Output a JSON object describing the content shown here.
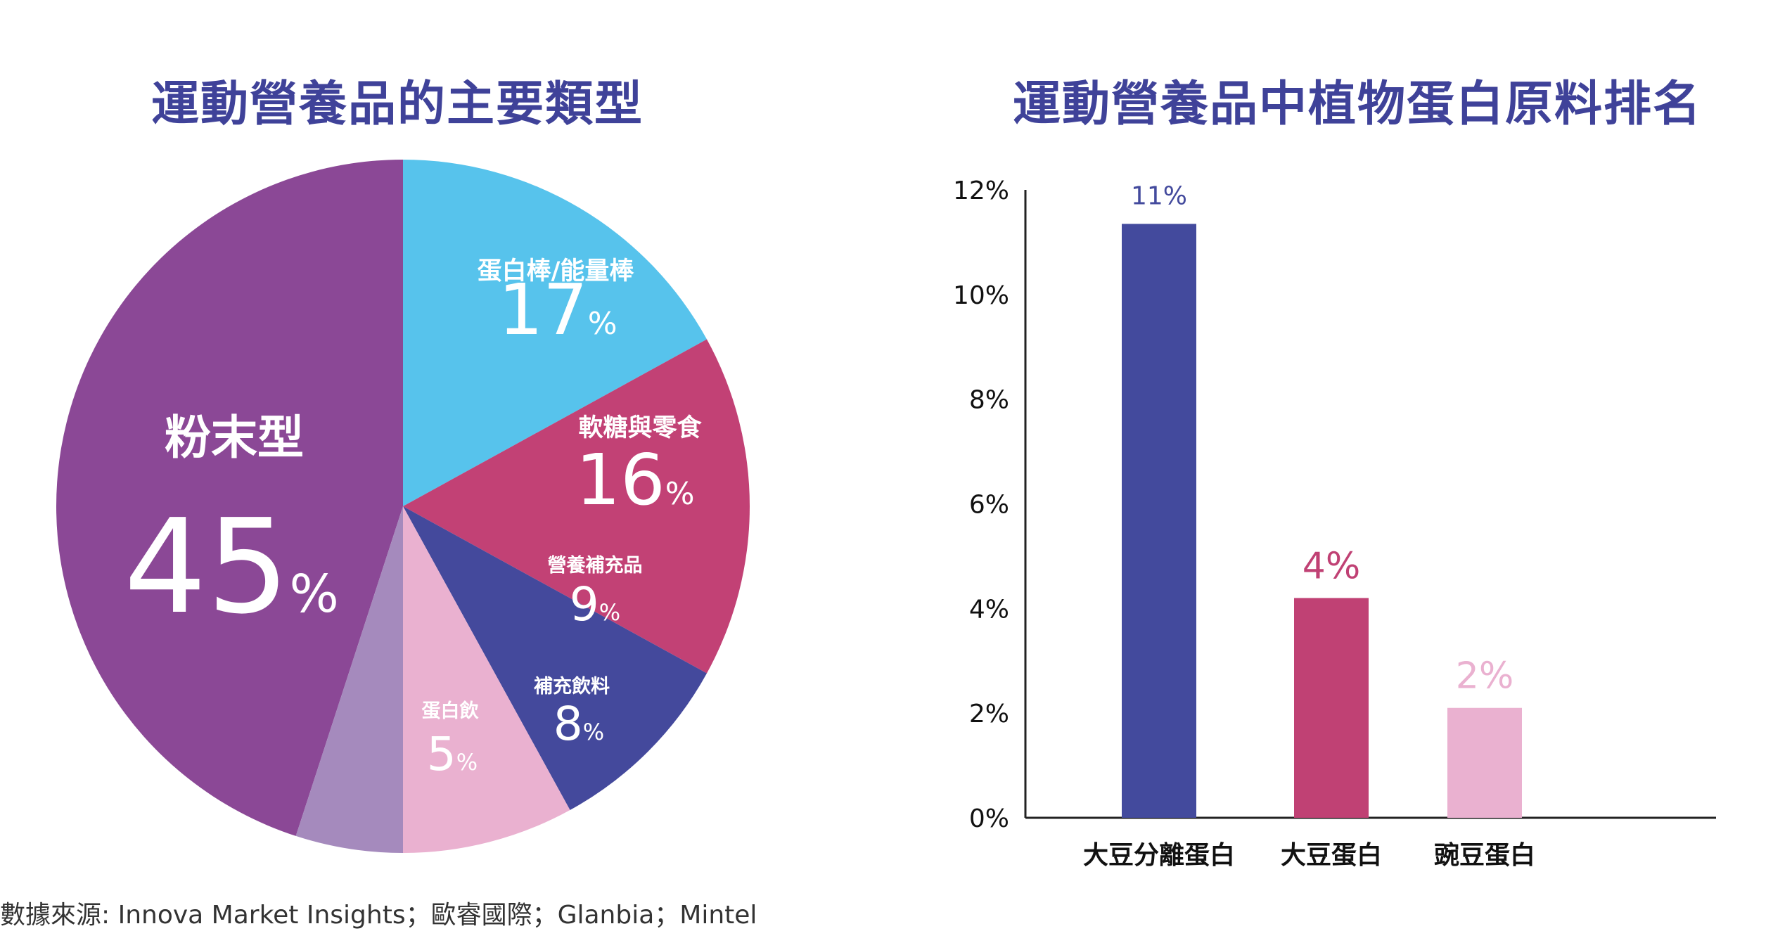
{
  "source": "數據來源: Innova Market Insights；歐睿國際；Glanbia；Mintel",
  "colors": {
    "title": "#3f4299",
    "axis": "#222222"
  },
  "chart_data": [
    {
      "type": "pie",
      "title": "運動營養品的主要類型",
      "slices": [
        {
          "label": "粉末型",
          "value": 45,
          "value_text": "45",
          "unit": "%",
          "color": "#8b4896"
        },
        {
          "label": "蛋白棒/能量棒",
          "value": 17,
          "value_text": "17",
          "unit": "%",
          "color": "#57c3ec"
        },
        {
          "label": "軟糖與零食",
          "value": 16,
          "value_text": "16",
          "unit": "%",
          "color": "#c24175"
        },
        {
          "label": "營養補充品",
          "value": 9,
          "value_text": "9",
          "unit": "%",
          "color": "#44499c"
        },
        {
          "label": "補充飲料",
          "value": 8,
          "value_text": "8",
          "unit": "%",
          "color": "#eab1d0"
        },
        {
          "label": "蛋白飲",
          "value": 5,
          "value_text": "5",
          "unit": "%",
          "color": "#a58abd"
        }
      ]
    },
    {
      "type": "bar",
      "title": "運動營養品中植物蛋白原料排名",
      "categories": [
        "大豆分離蛋白",
        "大豆蛋白",
        "豌豆蛋白"
      ],
      "values": [
        11.35,
        4.2,
        2.1
      ],
      "value_labels": [
        "11%",
        "4%",
        "2%"
      ],
      "colors": [
        "#434a9d",
        "#c04174",
        "#eab1d0"
      ],
      "yticks": [
        "0%",
        "2%",
        "4%",
        "6%",
        "8%",
        "10%",
        "12%"
      ],
      "ylim": [
        0,
        12
      ],
      "grid": false
    }
  ]
}
